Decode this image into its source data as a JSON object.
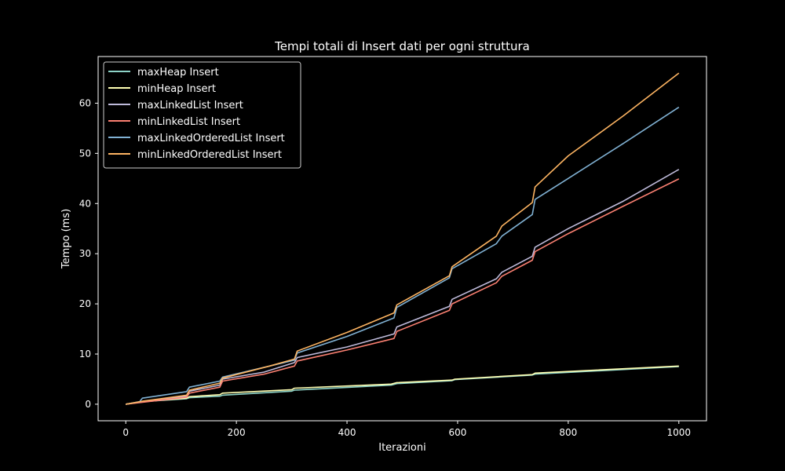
{
  "chart_data": {
    "type": "line",
    "title": "Tempi totali di Insert dati per ogni struttura",
    "xlabel": "Iterazioni",
    "ylabel": "Tempo (ms)",
    "xlim": [
      -50,
      1050
    ],
    "ylim": [
      -3.3,
      69.3
    ],
    "xticks": [
      0,
      200,
      400,
      600,
      800,
      1000
    ],
    "yticks": [
      0,
      10,
      20,
      30,
      40,
      50,
      60
    ],
    "grid": false,
    "legend_position": "top-left",
    "series": [
      {
        "name": "maxHeap Insert",
        "color": "#8dd3c7",
        "x": [
          0,
          30,
          110,
          115,
          170,
          175,
          300,
          305,
          480,
          490,
          590,
          595,
          735,
          740,
          1000
        ],
        "y": [
          0,
          0.5,
          1.1,
          1.3,
          1.6,
          1.8,
          2.6,
          2.8,
          3.8,
          4.1,
          4.7,
          4.9,
          5.8,
          6.0,
          7.5
        ]
      },
      {
        "name": "minHeap Insert",
        "color": "#ffffb3",
        "x": [
          0,
          30,
          110,
          115,
          170,
          175,
          300,
          305,
          480,
          490,
          590,
          595,
          735,
          740,
          1000
        ],
        "y": [
          0,
          0.5,
          1.2,
          1.5,
          1.9,
          2.2,
          2.9,
          3.2,
          4.0,
          4.3,
          4.8,
          5.0,
          5.9,
          6.2,
          7.6
        ]
      },
      {
        "name": "maxLinkedList Insert",
        "color": "#bebada",
        "x": [
          0,
          30,
          110,
          115,
          170,
          175,
          250,
          305,
          310,
          400,
          485,
          490,
          585,
          590,
          670,
          680,
          735,
          740,
          800,
          900,
          1000
        ],
        "y": [
          0,
          0.5,
          1.6,
          2.6,
          3.8,
          5.0,
          6.4,
          8.3,
          9.3,
          11.4,
          14.0,
          15.4,
          19.5,
          20.9,
          25.0,
          26.3,
          29.5,
          31.3,
          35.0,
          40.5,
          46.8
        ]
      },
      {
        "name": "minLinkedList Insert",
        "color": "#fb8072",
        "x": [
          0,
          30,
          110,
          115,
          170,
          175,
          250,
          305,
          310,
          400,
          485,
          490,
          585,
          590,
          670,
          680,
          735,
          740,
          800,
          900,
          1000
        ],
        "y": [
          0,
          0.4,
          1.4,
          2.2,
          3.4,
          4.6,
          6.0,
          7.6,
          8.6,
          10.8,
          13.1,
          14.5,
          18.7,
          20.0,
          24.2,
          25.5,
          28.7,
          30.4,
          34.0,
          39.5,
          44.9
        ]
      },
      {
        "name": "maxLinkedOrderedList Insert",
        "color": "#80b1d3",
        "x": [
          0,
          25,
          30,
          110,
          115,
          170,
          175,
          260,
          305,
          310,
          400,
          485,
          490,
          585,
          590,
          670,
          680,
          735,
          740,
          800,
          900,
          1000
        ],
        "y": [
          0,
          0.5,
          1.2,
          2.5,
          3.4,
          4.6,
          5.4,
          7.6,
          8.8,
          10.2,
          13.5,
          17.2,
          19.3,
          25.2,
          27.0,
          32.0,
          33.5,
          37.8,
          40.8,
          45.0,
          52.0,
          59.2
        ]
      },
      {
        "name": "minLinkedOrderedList Insert",
        "color": "#fdb462",
        "x": [
          0,
          30,
          110,
          115,
          170,
          175,
          260,
          305,
          310,
          400,
          485,
          490,
          585,
          590,
          670,
          680,
          735,
          740,
          800,
          900,
          1000
        ],
        "y": [
          0,
          0.6,
          1.8,
          2.8,
          4.2,
          5.2,
          7.6,
          9.0,
          10.6,
          14.3,
          18.2,
          19.8,
          25.6,
          27.4,
          33.5,
          35.5,
          40.2,
          43.3,
          49.5,
          57.5,
          66.0
        ]
      }
    ]
  }
}
